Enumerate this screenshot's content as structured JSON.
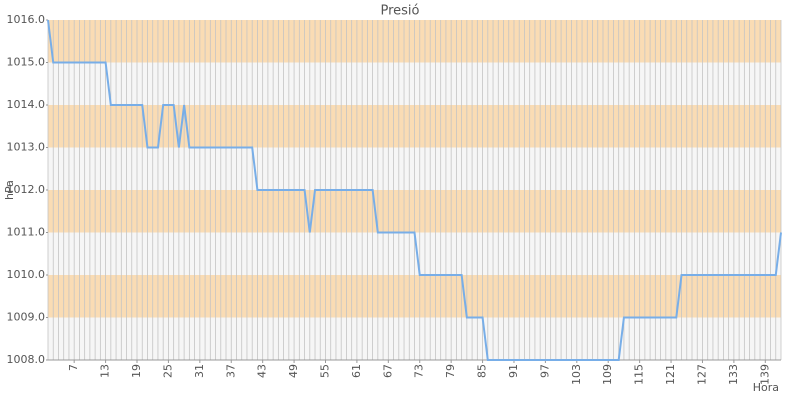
{
  "chart_data": {
    "type": "line",
    "title": "Presió",
    "x_label": "Hora",
    "y_label": "hPa",
    "x": [
      2,
      3,
      4,
      5,
      6,
      7,
      8,
      9,
      10,
      11,
      12,
      13,
      14,
      15,
      16,
      17,
      18,
      19,
      20,
      21,
      22,
      23,
      24,
      25,
      26,
      27,
      28,
      29,
      30,
      31,
      32,
      33,
      34,
      35,
      36,
      37,
      38,
      39,
      40,
      41,
      42,
      43,
      44,
      45,
      46,
      47,
      48,
      49,
      50,
      51,
      52,
      53,
      54,
      55,
      56,
      57,
      58,
      59,
      60,
      61,
      62,
      63,
      64,
      65,
      66,
      67,
      68,
      69,
      70,
      71,
      72,
      73,
      74,
      75,
      76,
      77,
      78,
      79,
      80,
      81,
      82,
      83,
      84,
      85,
      86,
      87,
      88,
      89,
      90,
      91,
      92,
      93,
      94,
      95,
      96,
      97,
      98,
      99,
      100,
      101,
      102,
      103,
      104,
      105,
      106,
      107,
      108,
      109,
      110,
      111,
      112,
      113,
      114,
      115,
      116,
      117,
      118,
      119,
      120,
      121,
      122,
      123,
      124,
      125,
      126,
      127,
      128,
      129,
      130,
      131,
      132,
      133,
      134,
      135,
      136,
      137,
      138,
      139,
      140,
      141,
      142
    ],
    "series": [
      {
        "name": "Presió",
        "color": "#78aee8",
        "values": [
          1016,
          1015,
          1015,
          1015,
          1015,
          1015,
          1015,
          1015,
          1015,
          1015,
          1015,
          1015,
          1014,
          1014,
          1014,
          1014,
          1014,
          1014,
          1014,
          1013,
          1013,
          1013,
          1014,
          1014,
          1014,
          1013,
          1014,
          1013,
          1013,
          1013,
          1013,
          1013,
          1013,
          1013,
          1013,
          1013,
          1013,
          1013,
          1013,
          1013,
          1012,
          1012,
          1012,
          1012,
          1012,
          1012,
          1012,
          1012,
          1012,
          1012,
          1011,
          1012,
          1012,
          1012,
          1012,
          1012,
          1012,
          1012,
          1012,
          1012,
          1012,
          1012,
          1012,
          1011,
          1011,
          1011,
          1011,
          1011,
          1011,
          1011,
          1011,
          1010,
          1010,
          1010,
          1010,
          1010,
          1010,
          1010,
          1010,
          1010,
          1009,
          1009,
          1009,
          1009,
          1008,
          1008,
          1008,
          1008,
          1008,
          1008,
          1008,
          1008,
          1008,
          1008,
          1008,
          1008,
          1008,
          1008,
          1008,
          1008,
          1008,
          1008,
          1008,
          1008,
          1008,
          1008,
          1008,
          1008,
          1008,
          1008,
          1009,
          1009,
          1009,
          1009,
          1009,
          1009,
          1009,
          1009,
          1009,
          1009,
          1009,
          1010,
          1010,
          1010,
          1010,
          1010,
          1010,
          1010,
          1010,
          1010,
          1010,
          1010,
          1010,
          1010,
          1010,
          1010,
          1010,
          1010,
          1010,
          1010,
          1011
        ]
      }
    ],
    "xlim": [
      2,
      142
    ],
    "xticks": [
      7,
      13,
      19,
      25,
      31,
      37,
      43,
      49,
      55,
      61,
      67,
      73,
      79,
      85,
      91,
      97,
      103,
      109,
      115,
      121,
      127,
      133,
      139
    ],
    "ylim": [
      1008,
      1016
    ],
    "yticks": [
      {
        "value": 1008,
        "label": "1008.0"
      },
      {
        "value": 1009,
        "label": "1009.0"
      },
      {
        "value": 1010,
        "label": "1010.0"
      },
      {
        "value": 1011,
        "label": "1011.0"
      },
      {
        "value": 1012,
        "label": "1012.0"
      },
      {
        "value": 1013,
        "label": "1013.0"
      },
      {
        "value": 1014,
        "label": "1014.0"
      },
      {
        "value": 1015,
        "label": "1015.0"
      },
      {
        "value": 1016,
        "label": "1016.0"
      }
    ],
    "band_colors": [
      "#f6f6f6",
      "#fadcb4"
    ],
    "grid": true
  }
}
